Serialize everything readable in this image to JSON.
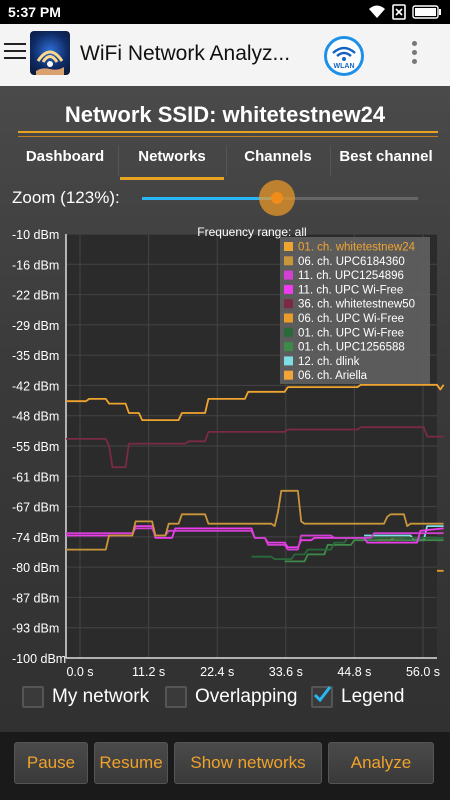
{
  "statusbar": {
    "time": "5:37 PM"
  },
  "app": {
    "title": "WiFi Network Analyz...",
    "wlan_label": "WLAN"
  },
  "header": {
    "ssid_title": "Network SSID: whitetestnew24"
  },
  "tabs": [
    {
      "label": "Dashboard",
      "active": false
    },
    {
      "label": "Networks",
      "active": true
    },
    {
      "label": "Channels",
      "active": false
    },
    {
      "label": "Best channel",
      "active": false
    }
  ],
  "zoom": {
    "label": "Zoom (123%):",
    "value": 0.49
  },
  "chart_data": {
    "type": "line",
    "title": "Frequency range: all",
    "y_ticks": [
      "-10 dBm",
      "-16 dBm",
      "-22 dBm",
      "-29 dBm",
      "-35 dBm",
      "-42 dBm",
      "-48 dBm",
      "-55 dBm",
      "-61 dBm",
      "-67 dBm",
      "-74 dBm",
      "-80 dBm",
      "-87 dBm",
      "-93 dBm",
      "-100 dBm"
    ],
    "x_ticks": [
      "0.0 s",
      "11.2 s",
      "22.4 s",
      "33.6 s",
      "44.8 s",
      "56.0 s"
    ],
    "xlim": [
      0,
      56
    ],
    "ylim": [
      -100,
      -10
    ],
    "legend_position": "top-right",
    "series": [
      {
        "name": "01. ch. whitetestnew24",
        "color": "#f0a430",
        "highlight": true,
        "points": [
          [
            0,
            -45.5
          ],
          [
            3,
            -45.5
          ],
          [
            3.5,
            -45
          ],
          [
            6,
            -45
          ],
          [
            6.5,
            -46
          ],
          [
            9,
            -46
          ],
          [
            9.5,
            -48
          ],
          [
            11,
            -48
          ],
          [
            11.5,
            -49.5
          ],
          [
            17,
            -49.5
          ],
          [
            17.5,
            -48
          ],
          [
            21,
            -48
          ],
          [
            21.5,
            -45
          ],
          [
            27,
            -45
          ],
          [
            27.5,
            -43.5
          ],
          [
            33,
            -43.5
          ],
          [
            33.5,
            -42.5
          ],
          [
            44,
            -42.5
          ],
          [
            44.5,
            -42
          ],
          [
            56,
            -42
          ],
          [
            56.5,
            -43
          ],
          [
            57,
            -42
          ]
        ]
      },
      {
        "name": "06. ch. UPC6184360",
        "color": "#c9963b",
        "points": [
          [
            0,
            -77
          ],
          [
            6,
            -77
          ],
          [
            6.5,
            -74
          ],
          [
            10,
            -74
          ],
          [
            10.5,
            -71
          ],
          [
            13,
            -71
          ],
          [
            13.5,
            -74
          ],
          [
            15,
            -74
          ],
          [
            15.5,
            -71.5
          ],
          [
            17,
            -71.5
          ],
          [
            17.5,
            -69.5
          ],
          [
            21,
            -69.5
          ],
          [
            21.5,
            -71.5
          ],
          [
            31,
            -71.5
          ],
          [
            31.5,
            -72
          ],
          [
            32,
            -69
          ],
          [
            32.5,
            -64.5
          ],
          [
            35,
            -64.5
          ],
          [
            35.5,
            -71
          ],
          [
            36,
            -71.5
          ],
          [
            48,
            -71.5
          ],
          [
            48.5,
            -70
          ],
          [
            49,
            -69.5
          ],
          [
            51,
            -69.5
          ],
          [
            51.5,
            -72
          ],
          [
            52,
            -71.5
          ],
          [
            57,
            -71.5
          ]
        ]
      },
      {
        "name": "11. ch. UPC1254896",
        "color": "#d23fd2",
        "points": [
          [
            0,
            -73.5
          ],
          [
            10,
            -73.5
          ],
          [
            10.5,
            -72.5
          ],
          [
            13,
            -72.5
          ],
          [
            13.5,
            -74
          ],
          [
            15,
            -74
          ],
          [
            15.5,
            -73
          ],
          [
            28,
            -73
          ],
          [
            28.5,
            -74.5
          ],
          [
            30,
            -74.5
          ],
          [
            30.5,
            -76
          ],
          [
            33,
            -76
          ],
          [
            33.5,
            -77
          ],
          [
            35,
            -77
          ],
          [
            35.5,
            -74
          ],
          [
            40,
            -74
          ],
          [
            40.5,
            -74.5
          ],
          [
            46,
            -74.5
          ],
          [
            46.5,
            -73.5
          ],
          [
            57,
            -73.5
          ]
        ]
      },
      {
        "name": "11. ch. UPC Wi-Free",
        "color": "#ee3cee",
        "points": [
          [
            0,
            -74
          ],
          [
            10,
            -74
          ],
          [
            10.5,
            -72
          ],
          [
            13,
            -72
          ],
          [
            13.5,
            -74.5
          ],
          [
            16,
            -74.5
          ],
          [
            16.5,
            -72.5
          ],
          [
            28,
            -72.5
          ],
          [
            28.5,
            -74.5
          ],
          [
            30,
            -74.5
          ],
          [
            30.5,
            -75.5
          ],
          [
            33,
            -75.5
          ],
          [
            33.5,
            -76.5
          ],
          [
            35,
            -76.5
          ],
          [
            35.5,
            -75
          ],
          [
            37,
            -75
          ],
          [
            37.5,
            -74.5
          ],
          [
            45,
            -74.5
          ],
          [
            45.5,
            -75.5
          ],
          [
            53,
            -75.5
          ],
          [
            53.5,
            -73
          ],
          [
            57,
            -72.5
          ]
        ]
      },
      {
        "name": "36. ch. whitetestnew50",
        "color": "#7a2a45",
        "points": [
          [
            0,
            -53.5
          ],
          [
            6,
            -53.5
          ],
          [
            6.5,
            -55
          ],
          [
            7,
            -59.5
          ],
          [
            9,
            -59.5
          ],
          [
            9.5,
            -54.5
          ],
          [
            18,
            -54.5
          ],
          [
            18.5,
            -54
          ],
          [
            21,
            -54
          ],
          [
            21.5,
            -52
          ],
          [
            33,
            -52
          ],
          [
            33.5,
            -51.5
          ],
          [
            44,
            -51.5
          ],
          [
            44.5,
            -51
          ],
          [
            54,
            -51
          ],
          [
            54.5,
            -53
          ],
          [
            57,
            -53
          ]
        ]
      },
      {
        "name": "06. ch. UPC Wi-Free",
        "color": "#e89c2a",
        "points": [
          [
            56,
            -81.5
          ],
          [
            57,
            -81.5
          ]
        ]
      },
      {
        "name": "01. ch. UPC Wi-Free",
        "color": "#2a6a3a",
        "points": [
          [
            28,
            -78.5
          ],
          [
            31,
            -78.5
          ],
          [
            31.5,
            -79
          ],
          [
            34,
            -79
          ],
          [
            34.5,
            -78
          ],
          [
            36,
            -78
          ],
          [
            36.5,
            -77
          ],
          [
            40,
            -77
          ],
          [
            40.5,
            -75.5
          ],
          [
            42,
            -75.5
          ],
          [
            42.5,
            -74.5
          ],
          [
            57,
            -74.5
          ]
        ]
      },
      {
        "name": "01. ch. UPC1256588",
        "color": "#3e8a4a",
        "points": [
          [
            33,
            -79.5
          ],
          [
            36,
            -79.5
          ],
          [
            36.5,
            -78
          ],
          [
            39,
            -78
          ],
          [
            39.5,
            -76
          ],
          [
            43,
            -76
          ],
          [
            43.5,
            -75
          ],
          [
            57,
            -75
          ]
        ]
      },
      {
        "name": "12. ch. dlink",
        "color": "#7fdde6",
        "points": [
          [
            45,
            -74
          ],
          [
            52,
            -74
          ],
          [
            52.5,
            -75
          ],
          [
            54,
            -75
          ],
          [
            54.5,
            -72
          ],
          [
            57,
            -72
          ]
        ]
      },
      {
        "name": "06. ch. Ariella",
        "color": "#f0a43a",
        "points": [
          [
            47,
            -75
          ],
          [
            49,
            -75
          ],
          [
            49.5,
            -74.5
          ],
          [
            51,
            -74.5
          ]
        ]
      }
    ]
  },
  "checkboxes": [
    {
      "label": "My network",
      "checked": false
    },
    {
      "label": "Overlapping",
      "checked": false
    },
    {
      "label": "Legend",
      "checked": true
    }
  ],
  "buttons": [
    {
      "label": "Pause"
    },
    {
      "label": "Resume"
    },
    {
      "label": "Show networks"
    },
    {
      "label": "Analyze"
    }
  ]
}
